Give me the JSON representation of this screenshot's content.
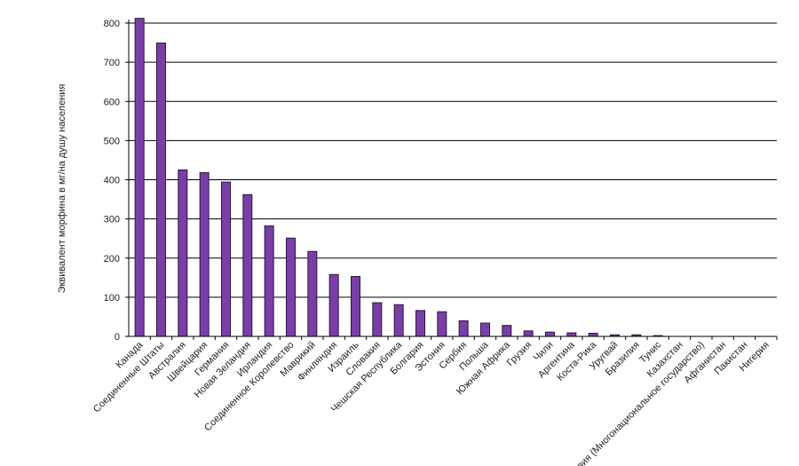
{
  "chart_data": {
    "type": "bar",
    "title": "",
    "xlabel": "",
    "ylabel": "Эквивалент морфина в мг/на душу населения",
    "ylim": [
      0,
      800
    ],
    "yticks": [
      0,
      100,
      200,
      300,
      400,
      500,
      600,
      700,
      800
    ],
    "grid": true,
    "legend": "none",
    "bar_color": "#7a3fa6",
    "bar_edge_color": "#2a1540",
    "categories": [
      "Канада",
      "Соединенные Штаты",
      "Австралия",
      "Швейцария",
      "Германия",
      "Новая Зеландия",
      "Ирландия",
      "Соединенное Королевство",
      "Маврикий",
      "Финляндия",
      "Израиль",
      "Словакия",
      "Чешская Республика",
      "Болгария",
      "Эстония",
      "Сербия",
      "Польша",
      "Южная Африка",
      "Грузия",
      "Чили",
      "Аргентина",
      "Коста-Рика",
      "Уругвай",
      "Бразилия",
      "Тунис",
      "Казахстан",
      "Боливия (Многонациональное государство)",
      "Афганистан",
      "Пакистан",
      "Нигерия"
    ],
    "values": [
      812,
      749,
      425,
      418,
      394,
      362,
      282,
      251,
      217,
      158,
      153,
      86,
      81,
      66,
      63,
      40,
      34,
      28,
      14,
      11,
      9,
      8,
      4,
      4,
      2,
      0.5,
      0.3,
      0.2,
      0.1,
      0.1
    ]
  }
}
